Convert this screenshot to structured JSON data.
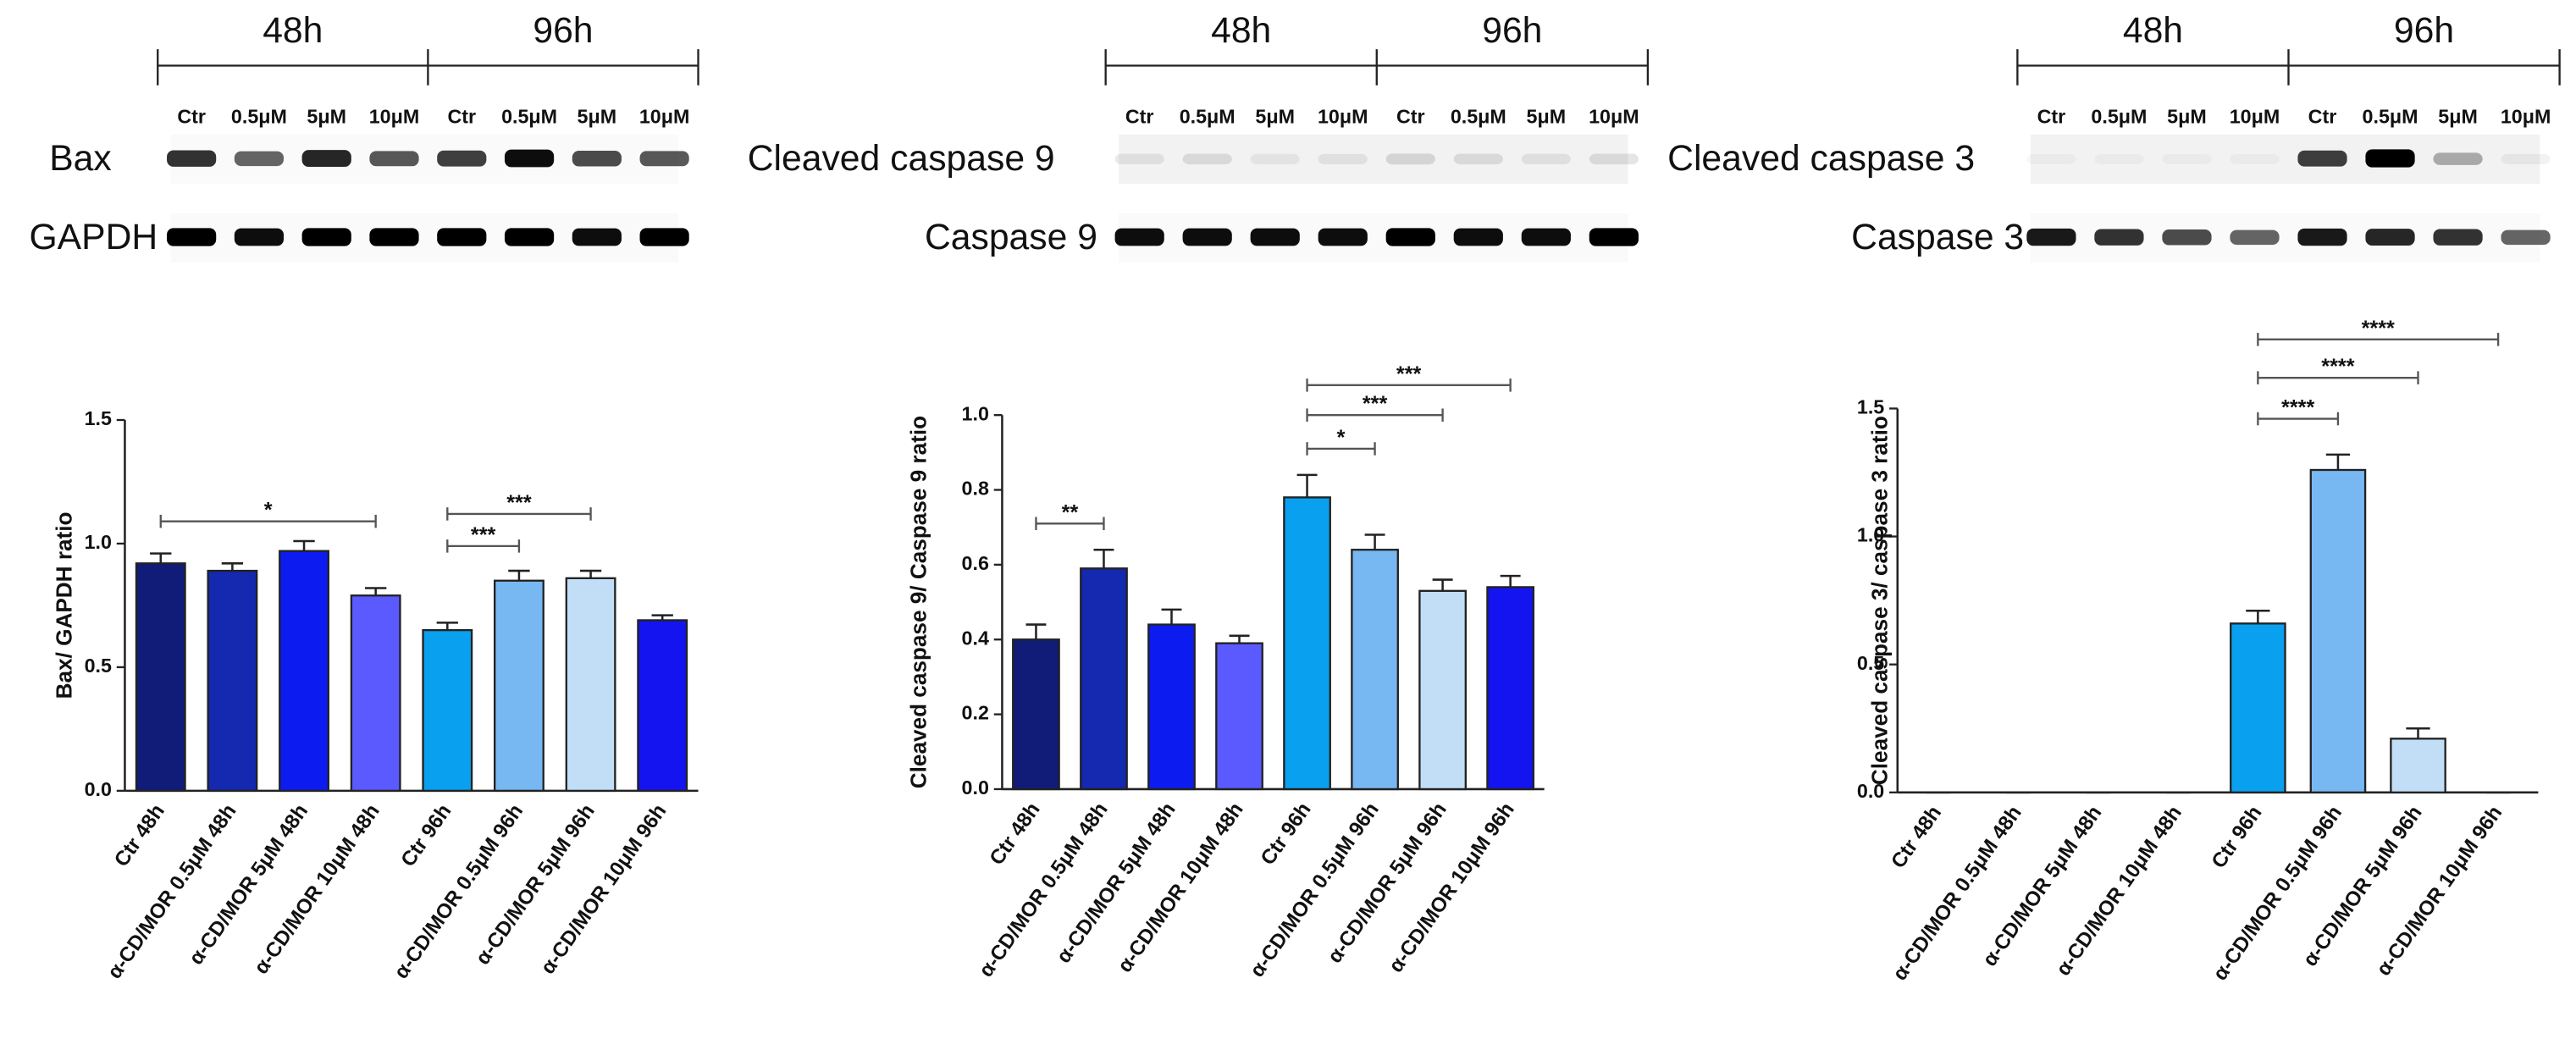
{
  "chart_data": [
    {
      "type": "bar",
      "blot": {
        "times": [
          "48h",
          "96h"
        ],
        "lanes": [
          "Ctr",
          "0.5μM",
          "5μM",
          "10μM",
          "Ctr",
          "0.5μM",
          "5μM",
          "10μM"
        ],
        "rows": [
          "Bax",
          "GAPDH"
        ]
      },
      "ylabel": "Bax/ GAPDH ratio",
      "categories": [
        "Ctr 48h",
        "α-CD/MOR 0.5μM 48h",
        "α-CD/MOR 5μM 48h",
        "α-CD/MOR 10μM 48h",
        "Ctr 96h",
        "α-CD/MOR 0.5μM 96h",
        "α-CD/MOR 5μM 96h",
        "α-CD/MOR 10μM 96h"
      ],
      "values": [
        0.92,
        0.89,
        0.97,
        0.79,
        0.65,
        0.85,
        0.86,
        0.69
      ],
      "errors": [
        0.04,
        0.03,
        0.04,
        0.03,
        0.03,
        0.04,
        0.03,
        0.02
      ],
      "colors": [
        "#101c78",
        "#1428b0",
        "#0c1cf0",
        "#5a5aff",
        "#0aa0f0",
        "#78b8f2",
        "#c2def6",
        "#1414f0"
      ],
      "ylim": [
        0,
        1.5
      ],
      "yticks": [
        {
          "value": 0,
          "label": "0.0"
        },
        {
          "value": 0.5,
          "label": "0.5"
        },
        {
          "value": 1,
          "label": "1.0"
        },
        {
          "value": 1.5,
          "label": "1.5"
        }
      ],
      "annotations": [
        {
          "text": "*",
          "from": 0,
          "to": 3,
          "y": 1.09
        },
        {
          "text": "***",
          "from": 4,
          "to": 5,
          "y": 0.99
        },
        {
          "text": "***",
          "from": 4,
          "to": 6,
          "y": 1.12
        }
      ]
    },
    {
      "type": "bar",
      "blot": {
        "times": [
          "48h",
          "96h"
        ],
        "lanes": [
          "Ctr",
          "0.5μM",
          "5μM",
          "10μM",
          "Ctr",
          "0.5μM",
          "5μM",
          "10μM"
        ],
        "rows": [
          "Cleaved caspase 9",
          "Caspase 9"
        ]
      },
      "ylabel": "Cleaved caspase 9/ Caspase 9 ratio",
      "categories": [
        "Ctr 48h",
        "α-CD/MOR 0.5μM 48h",
        "α-CD/MOR 5μM 48h",
        "α-CD/MOR 10μM 48h",
        "Ctr 96h",
        "α-CD/MOR 0.5μM 96h",
        "α-CD/MOR 5μM 96h",
        "α-CD/MOR 10μM 96h"
      ],
      "values": [
        0.4,
        0.59,
        0.44,
        0.39,
        0.78,
        0.64,
        0.53,
        0.54
      ],
      "errors": [
        0.04,
        0.05,
        0.04,
        0.02,
        0.06,
        0.04,
        0.03,
        0.03
      ],
      "colors": [
        "#101c78",
        "#1428b0",
        "#0c1cf0",
        "#5a5aff",
        "#0aa0f0",
        "#78b8f2",
        "#c2def6",
        "#1414f0"
      ],
      "ylim": [
        0,
        1.0
      ],
      "yticks": [
        {
          "value": 0,
          "label": "0.0"
        },
        {
          "value": 0.2,
          "label": "0.2"
        },
        {
          "value": 0.4,
          "label": "0.4"
        },
        {
          "value": 0.6,
          "label": "0.6"
        },
        {
          "value": 0.8,
          "label": "0.8"
        },
        {
          "value": 1,
          "label": "1.0"
        }
      ],
      "annotations": [
        {
          "text": "**",
          "from": 0,
          "to": 1,
          "y": 0.71
        },
        {
          "text": "*",
          "from": 4,
          "to": 5,
          "y": 0.91
        },
        {
          "text": "***",
          "from": 4,
          "to": 6,
          "y": 1.0
        },
        {
          "text": "***",
          "from": 4,
          "to": 7,
          "y": 1.08
        }
      ]
    },
    {
      "type": "bar",
      "blot": {
        "times": [
          "48h",
          "96h"
        ],
        "lanes": [
          "Ctr",
          "0.5μM",
          "5μM",
          "10μM",
          "Ctr",
          "0.5μM",
          "5μM",
          "10μM"
        ],
        "rows": [
          "Cleaved caspase 3",
          "Caspase 3"
        ]
      },
      "ylabel": "Cleaved caspase 3/ caspase 3 ratio",
      "categories": [
        "Ctr 48h",
        "α-CD/MOR 0.5μM 48h",
        "α-CD/MOR 5μM 48h",
        "α-CD/MOR 10μM 48h",
        "Ctr 96h",
        "α-CD/MOR 0.5μM 96h",
        "α-CD/MOR 5μM 96h",
        "α-CD/MOR 10μM 96h"
      ],
      "values": [
        0,
        0,
        0,
        0,
        0.66,
        1.26,
        0.21,
        0
      ],
      "errors": [
        0,
        0,
        0,
        0,
        0.05,
        0.06,
        0.04,
        0
      ],
      "colors": [
        "#101c78",
        "#1428b0",
        "#0c1cf0",
        "#5a5aff",
        "#0aa0f0",
        "#78b8f2",
        "#c2def6",
        "#1414f0"
      ],
      "ylim": [
        0,
        1.5
      ],
      "yticks": [
        {
          "value": 0,
          "label": "0.0"
        },
        {
          "value": 0.5,
          "label": "0.5"
        },
        {
          "value": 1,
          "label": "1.0"
        },
        {
          "value": 1.5,
          "label": "1.5"
        }
      ],
      "annotations": [
        {
          "text": "****",
          "from": 4,
          "to": 5,
          "y": 1.46
        },
        {
          "text": "****",
          "from": 4,
          "to": 6,
          "y": 1.62
        },
        {
          "text": "****",
          "from": 4,
          "to": 7,
          "y": 1.77
        }
      ]
    }
  ]
}
